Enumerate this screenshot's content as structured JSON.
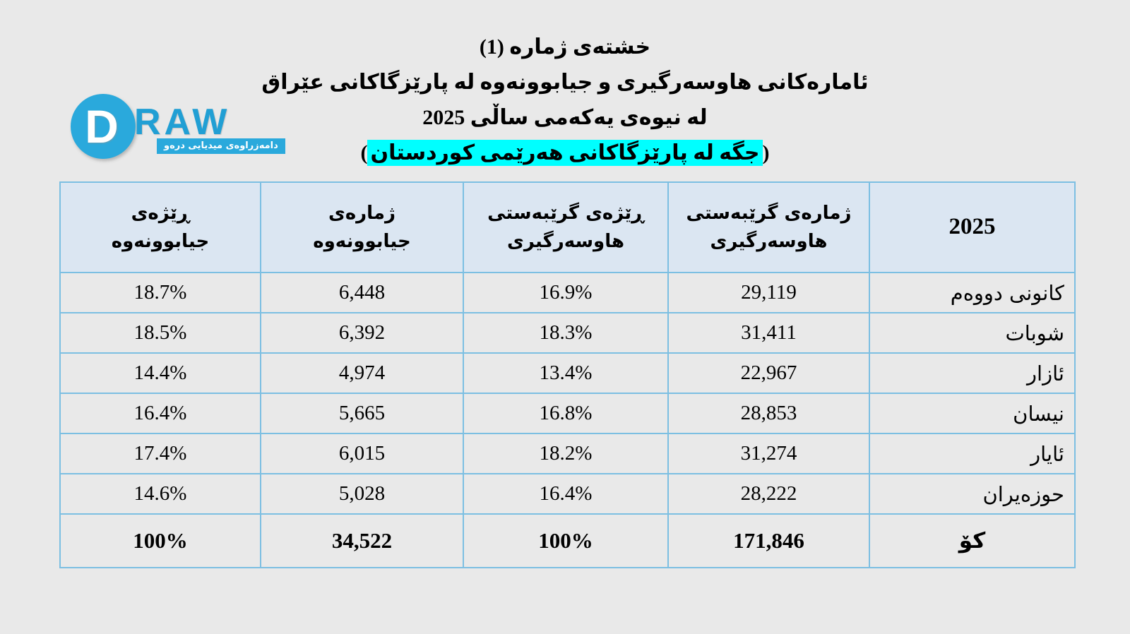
{
  "logo": {
    "d_letter": "D",
    "raw_text": "RAW",
    "banner_text": "دامەزراوەی میدیایی درەو",
    "brand_color": "#2aa9dc"
  },
  "title": {
    "line1": "خشتەی ژمارە (1)",
    "line2": "ئامارەکانی هاوسەرگیری و جیابوونەوە لە پارێزگاکانی عێراق",
    "line3": "لە نیوەی یەکەمی ساڵی 2025",
    "line4_open_paren": "(",
    "line4_highlight": "جگە لە پارێزگاکانی هەرێمی کوردستان",
    "line4_close_paren": ")",
    "highlight_color": "#00ffff"
  },
  "table": {
    "header": {
      "year": "2025",
      "marriage_count": "ژمارەی گرێبەستی\nهاوسەرگیری",
      "marriage_rate": "ڕێژەی گرێبەستی\nهاوسەرگیری",
      "divorce_count": "ژمارەی\nجیابوونەوە",
      "divorce_rate": "ڕێژەی\nجیابوونەوە"
    },
    "rows": [
      {
        "month": "کانونی دووەم",
        "marriage_count": "29,119",
        "marriage_rate": "16.9%",
        "divorce_count": "6,448",
        "divorce_rate": "18.7%"
      },
      {
        "month": "شوبات",
        "marriage_count": "31,411",
        "marriage_rate": "18.3%",
        "divorce_count": "6,392",
        "divorce_rate": "18.5%"
      },
      {
        "month": "ئازار",
        "marriage_count": "22,967",
        "marriage_rate": "13.4%",
        "divorce_count": "4,974",
        "divorce_rate": "14.4%"
      },
      {
        "month": "نیسان",
        "marriage_count": "28,853",
        "marriage_rate": "16.8%",
        "divorce_count": "5,665",
        "divorce_rate": "16.4%"
      },
      {
        "month": "ئایار",
        "marriage_count": "31,274",
        "marriage_rate": "18.2%",
        "divorce_count": "6,015",
        "divorce_rate": "17.4%"
      },
      {
        "month": "حوزەیران",
        "marriage_count": "28,222",
        "marriage_rate": "16.4%",
        "divorce_count": "5,028",
        "divorce_rate": "14.6%"
      }
    ],
    "total": {
      "label": "کۆ",
      "marriage_count": "171,846",
      "marriage_rate": "100%",
      "divorce_count": "34,522",
      "divorce_rate": "100%"
    },
    "colors": {
      "header_bg": "#dbe6f2",
      "cell_bg": "#e9e9e9",
      "border": "#7cbfe2"
    }
  },
  "chart_data": {
    "type": "table",
    "title": "خشتەی ژمارە (1)",
    "subtitle": "ئامارەکانی هاوسەرگیری و جیابوونەوە لە پارێزگاکانی عێراق لە نیوەی یەکەمی ساڵی 2025 (جگە لە پارێزگاکانی هەرێمی کوردستان)",
    "categories": [
      "کانونی دووەم",
      "شوبات",
      "ئازار",
      "نیسان",
      "ئایار",
      "حوزەیران"
    ],
    "series": [
      {
        "name": "ژمارەی گرێبەستی هاوسەرگیری",
        "values": [
          29119,
          31411,
          22967,
          28853,
          31274,
          28222
        ],
        "total": 171846
      },
      {
        "name": "ڕێژەی گرێبەستی هاوسەرگیری (%)",
        "values": [
          16.9,
          18.3,
          13.4,
          16.8,
          18.2,
          16.4
        ],
        "total": 100
      },
      {
        "name": "ژمارەی جیابوونەوە",
        "values": [
          6448,
          6392,
          4974,
          5665,
          6015,
          5028
        ],
        "total": 34522
      },
      {
        "name": "ڕێژەی جیابوونەوە (%)",
        "values": [
          18.7,
          18.5,
          14.4,
          16.4,
          17.4,
          14.6
        ],
        "total": 100
      }
    ],
    "total_row_label": "کۆ"
  }
}
